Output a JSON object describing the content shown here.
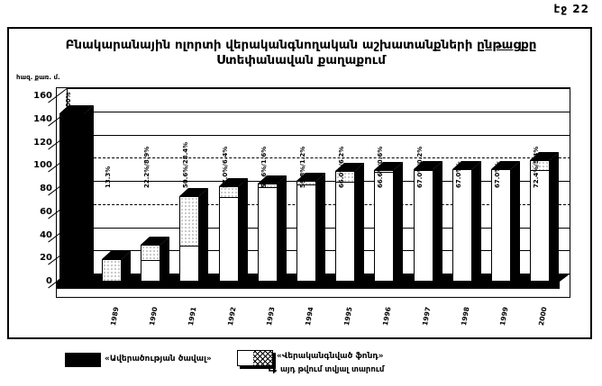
{
  "page": {
    "label": "էջ 22",
    "background": "#ffffff",
    "ink": "#000000"
  },
  "chart": {
    "title_line1": "Բնակարանային ոլորտի վերականգնողական աշխատանքների",
    "title_line1_underlined": "ընթացքը",
    "title_line2": "Ստեփանավան քաղաքում",
    "unit_label": "հազ. քառ. մ."
  },
  "legend": {
    "item1_label": "«Ավերածության ծավալ»",
    "item2_label_line1": "«Վերականգնված ֆոնդ»",
    "item2_label_line2": "այդ թվում տվյալ տարում"
  },
  "chart_data": {
    "type": "bar",
    "title": "Բնակարանային ոլորտի վերականգնողական աշխատանքների ընթացքը Ստեփանավան քաղաքում",
    "ylabel": "հազ. քառ. մ.",
    "ylim": [
      0,
      160
    ],
    "yticks": [
      0,
      20,
      40,
      60,
      80,
      100,
      120,
      140,
      160
    ],
    "grid": true,
    "legend_position": "bottom",
    "baseline_bar": {
      "label": "100%",
      "value_thousand_sqm": 145,
      "color": "#000000",
      "legend_name": "«Ավերածության ծավալ»"
    },
    "categories": [
      "1989",
      "1990",
      "1991",
      "1992",
      "1993",
      "1994",
      "1995",
      "1996",
      "1997",
      "1998",
      "1999",
      "2000"
    ],
    "series": [
      {
        "name": "«Վերականգնված ֆոնդ» (կուտակային)",
        "percent_cumulative": [
          13.3,
          22.2,
          50.6,
          57.0,
          58.6,
          59.8,
          66.0,
          66.6,
          67.0,
          67.0,
          67.0,
          72.4
        ],
        "values_thousand_sqm": [
          19.3,
          32.2,
          73.4,
          82.7,
          85.0,
          86.7,
          95.7,
          96.6,
          97.2,
          97.2,
          97.2,
          105.0
        ]
      },
      {
        "name": "այդ թվում տվյալ տարում",
        "percent_year": [
          13.3,
          8.9,
          28.4,
          6.4,
          1.6,
          1.2,
          6.2,
          0.6,
          0.2,
          0,
          0,
          5.4
        ],
        "values_thousand_sqm": [
          19.3,
          12.9,
          41.2,
          9.3,
          2.3,
          1.7,
          9.0,
          0.9,
          0.3,
          0,
          0,
          7.8
        ]
      }
    ],
    "bar_labels": [
      "13.3%",
      "22.2%/8.9%",
      "50.6%/28.4%",
      "57.0%/6.4%",
      "58.6%/1.6%",
      "59.8%/1.2%",
      "66.0%/6.2%",
      "66.6%/0.6%",
      "67.0%/0.2%",
      "67.0%/-",
      "67.0%/-",
      "72.4%/5.4%"
    ]
  }
}
